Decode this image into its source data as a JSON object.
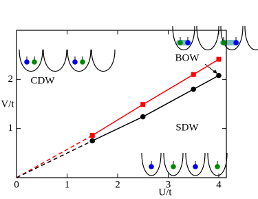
{
  "chart_data": {
    "type": "line",
    "x_label": "U/t",
    "y_label": "V/t",
    "xlim": [
      0,
      4.15
    ],
    "ylim": [
      0,
      3
    ],
    "xticks": [
      0,
      1,
      2,
      3,
      4
    ],
    "yticks": [
      1,
      2
    ],
    "series": [
      {
        "color": "#ff0000",
        "marker": "square",
        "x": [
          1.5,
          2.5,
          3.5,
          4
        ],
        "values": [
          0.86,
          1.49,
          2.1,
          2.41
        ]
      },
      {
        "color": "#000000",
        "marker": "circle",
        "x": [
          1.5,
          2.5,
          3.5,
          4
        ],
        "values": [
          0.75,
          1.24,
          1.8,
          2.08
        ]
      }
    ],
    "annotations": [
      "CDW",
      "BOW",
      "SDW"
    ]
  }
}
